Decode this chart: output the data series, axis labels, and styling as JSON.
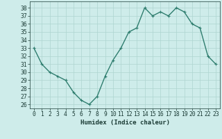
{
  "x": [
    0,
    1,
    2,
    3,
    4,
    5,
    6,
    7,
    8,
    9,
    10,
    11,
    12,
    13,
    14,
    15,
    16,
    17,
    18,
    19,
    20,
    21,
    22,
    23
  ],
  "y": [
    33,
    31,
    30,
    29.5,
    29,
    27.5,
    26.5,
    26,
    27,
    29.5,
    31.5,
    33,
    35,
    35.5,
    38,
    37,
    37.5,
    37,
    38,
    37.5,
    36,
    35.5,
    32,
    31
  ],
  "xlabel": "Humidex (Indice chaleur)",
  "ylim": [
    25.5,
    38.8
  ],
  "yticks": [
    26,
    27,
    28,
    29,
    30,
    31,
    32,
    33,
    34,
    35,
    36,
    37,
    38
  ],
  "xticks": [
    0,
    1,
    2,
    3,
    4,
    5,
    6,
    7,
    8,
    9,
    10,
    11,
    12,
    13,
    14,
    15,
    16,
    17,
    18,
    19,
    20,
    21,
    22,
    23
  ],
  "line_color": "#2e7d6e",
  "marker_color": "#2e7d6e",
  "bg_color": "#ceecea",
  "grid_color": "#aed4d0",
  "tick_label_color": "#1a3a34",
  "xlabel_color": "#1a3a34",
  "xlabel_fontsize": 6.5,
  "tick_fontsize": 5.8,
  "line_width": 1.0,
  "marker_size": 2.5
}
